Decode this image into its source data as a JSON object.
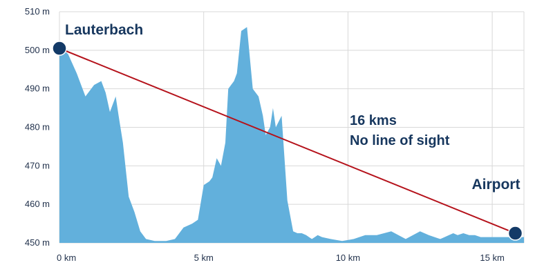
{
  "chart_data": {
    "type": "area",
    "title": "",
    "xlabel": "",
    "ylabel": "",
    "x_unit": "km",
    "y_unit": "m",
    "xlim": [
      0,
      16.1
    ],
    "ylim": [
      450,
      510
    ],
    "grid": true,
    "x_ticks": [
      {
        "value": 0,
        "label": "0 km"
      },
      {
        "value": 5,
        "label": "5 km"
      },
      {
        "value": 10,
        "label": "10 km"
      },
      {
        "value": 15,
        "label": "15 km"
      }
    ],
    "y_ticks": [
      {
        "value": 450,
        "label": "450 m"
      },
      {
        "value": 460,
        "label": "460 m"
      },
      {
        "value": 470,
        "label": "470 m"
      },
      {
        "value": 480,
        "label": "480 m"
      },
      {
        "value": 490,
        "label": "490 m"
      },
      {
        "value": 500,
        "label": "500 m"
      },
      {
        "value": 510,
        "label": "510 m"
      }
    ],
    "series": [
      {
        "values_x": [
          0,
          0.3,
          0.6,
          0.9,
          1.2,
          1.45,
          1.6,
          1.75,
          1.85,
          1.95,
          2.05,
          2.2,
          2.4,
          2.6,
          2.8,
          3.0,
          3.3,
          3.7,
          4.0,
          4.3,
          4.6,
          4.8,
          5.0,
          5.2,
          5.3,
          5.45,
          5.6,
          5.75,
          5.85,
          5.95,
          6.05,
          6.15,
          6.3,
          6.5,
          6.7,
          6.9,
          7.05,
          7.15,
          7.3,
          7.4,
          7.5,
          7.7,
          7.9,
          8.1,
          8.25,
          8.4,
          8.55,
          8.65,
          8.75,
          8.85,
          8.95,
          9.1,
          9.4,
          9.8,
          10.2,
          10.6,
          11.0,
          11.5,
          12.0,
          12.5,
          12.8,
          13.0,
          13.2,
          13.35,
          13.5,
          13.65,
          13.8,
          14.0,
          14.2,
          14.4,
          14.6,
          14.8,
          15.0,
          15.3,
          15.6,
          15.9,
          16.1
        ],
        "values_y": [
          501,
          499,
          494,
          488,
          491,
          492,
          489,
          484,
          486,
          488,
          483,
          476,
          462,
          458,
          453,
          451,
          450.5,
          450.5,
          451,
          454,
          455,
          456,
          465,
          466,
          467,
          472,
          470,
          476,
          490,
          491,
          492,
          494,
          505,
          506,
          490,
          488,
          483,
          478,
          480,
          485,
          480,
          483,
          461,
          453,
          452.5,
          452.5,
          452,
          451.5,
          451,
          451.5,
          452,
          451.5,
          451,
          450.5,
          451,
          452,
          452,
          453,
          451,
          453,
          452,
          451.5,
          451,
          451.5,
          452,
          452.5,
          452,
          452.5,
          452,
          452,
          451.5,
          451.5,
          451.5,
          451.5,
          451.5,
          451.5,
          451.5
        ],
        "color": "#62b0dc"
      }
    ],
    "line_of_sight": {
      "from": {
        "x": 0,
        "y": 500.5
      },
      "to": {
        "x": 15.8,
        "y": 452.5
      },
      "color": "#b5121b"
    },
    "points": [
      {
        "label": "Lauterbach",
        "x": 0,
        "y": 500.5
      },
      {
        "label": "Airport",
        "x": 15.8,
        "y": 452.5
      }
    ],
    "annotations": [
      "16 kms",
      "No line of sight"
    ],
    "marker_color": "#133a67",
    "grid_color": "#d8d8d8",
    "text_color": "#17375e"
  }
}
